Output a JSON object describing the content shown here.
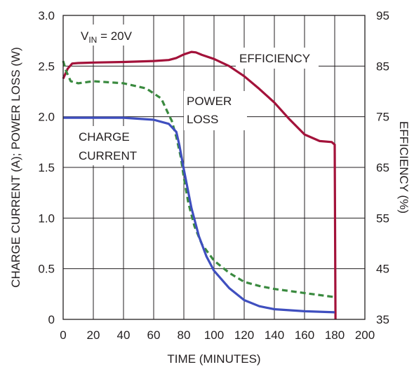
{
  "chart_data": {
    "type": "line",
    "xlabel": "TIME (MINUTES)",
    "ylabel_left": "CHARGE CURRENT (A); POWER LOSS (W)",
    "ylabel_right": "EFFICIENCY (%)",
    "xlim": [
      0,
      200
    ],
    "ylim_left": [
      0,
      3.0
    ],
    "ylim_right": [
      35,
      95
    ],
    "x_ticks": [
      "0",
      "20",
      "40",
      "60",
      "80",
      "100",
      "120",
      "140",
      "160",
      "180",
      "200"
    ],
    "y_left_ticks": [
      "0",
      "0.5",
      "1.0",
      "1.5",
      "2.0",
      "2.5",
      "3.0"
    ],
    "y_right_ticks": [
      "35",
      "45",
      "55",
      "65",
      "75",
      "85",
      "95"
    ],
    "grid": true,
    "annotations": {
      "vin": {
        "main": "V",
        "sub": "IN",
        "rest": " = 20V"
      },
      "efficiency": "EFFICIENCY",
      "power_loss": [
        "POWER",
        "LOSS"
      ],
      "charge_current": [
        "CHARGE",
        "CURRENT"
      ]
    },
    "series": [
      {
        "key": "efficiency",
        "axis": "right",
        "color": "#a3123a",
        "dash": "",
        "x": [
          0,
          3,
          6,
          10,
          20,
          40,
          60,
          70,
          75,
          80,
          85,
          88,
          92,
          100,
          110,
          120,
          130,
          140,
          150,
          160,
          170,
          178,
          180,
          180.5
        ],
        "y": [
          82.5,
          84.5,
          85.5,
          85.6,
          85.7,
          85.8,
          86.0,
          86.2,
          86.6,
          87.3,
          87.8,
          87.7,
          87.2,
          86.4,
          85.0,
          83.0,
          80.5,
          77.8,
          74.5,
          71.5,
          70.2,
          70.0,
          69.5,
          35.0
        ]
      },
      {
        "key": "power_loss",
        "axis": "left",
        "color": "#3a8a3f",
        "dash": "8,5",
        "x": [
          0,
          2,
          5,
          10,
          20,
          40,
          55,
          65,
          70,
          72,
          75,
          78,
          80,
          83,
          87,
          92,
          100,
          110,
          120,
          130,
          140,
          160,
          180
        ],
        "y": [
          2.55,
          2.45,
          2.35,
          2.33,
          2.35,
          2.33,
          2.28,
          2.18,
          2.02,
          1.96,
          1.8,
          1.6,
          1.4,
          1.15,
          0.92,
          0.74,
          0.58,
          0.46,
          0.37,
          0.33,
          0.3,
          0.26,
          0.22
        ]
      },
      {
        "key": "charge_current",
        "axis": "left",
        "color": "#3f4fbf",
        "dash": "",
        "x": [
          0,
          20,
          40,
          60,
          70,
          75,
          77,
          80,
          85,
          90,
          95,
          100,
          110,
          120,
          130,
          140,
          160,
          180
        ],
        "y": [
          1.99,
          1.99,
          1.99,
          1.97,
          1.93,
          1.85,
          1.72,
          1.48,
          1.1,
          0.82,
          0.62,
          0.48,
          0.31,
          0.19,
          0.13,
          0.1,
          0.08,
          0.07
        ]
      }
    ]
  }
}
